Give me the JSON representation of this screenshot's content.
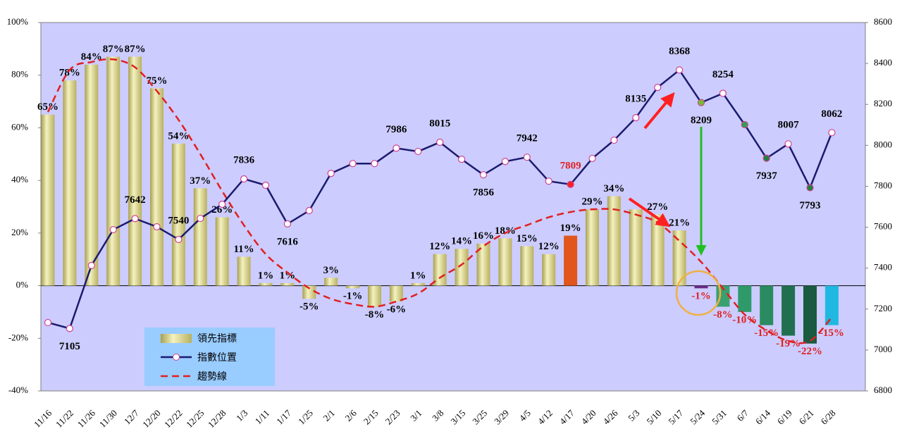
{
  "chart_data": {
    "type": "bar_line",
    "categories": [
      "11/16",
      "11/22",
      "11/26",
      "11/30",
      "12/7",
      "12/20",
      "12/22",
      "12/25",
      "12/28",
      "1/3",
      "1/11",
      "1/17",
      "1/25",
      "2/1",
      "2/6",
      "2/15",
      "2/23",
      "3/1",
      "3/8",
      "3/15",
      "3/25",
      "3/29",
      "4/5",
      "4/12",
      "4/17",
      "4/20",
      "4/26",
      "5/3",
      "5/10",
      "5/17",
      "5/24",
      "5/31",
      "6/7",
      "6/14",
      "6/19",
      "6/21",
      "6/28"
    ],
    "series": [
      {
        "name": "領先指標",
        "type": "bar",
        "axis": "y",
        "values": [
          65,
          78,
          84,
          87,
          87,
          75,
          54,
          37,
          26,
          11,
          1,
          1,
          -5,
          3,
          -1,
          -8,
          -6,
          1,
          12,
          14,
          16,
          18,
          15,
          12,
          19,
          29,
          34,
          29,
          27,
          21,
          -1,
          -8,
          -10,
          -15,
          -19,
          -22,
          -15
        ],
        "value_labels": [
          "65%",
          "78%",
          "84%",
          "87%",
          "87%",
          "75%",
          "54%",
          "37%",
          "26%",
          "11%",
          "1%",
          "1%",
          "-5%",
          "3%",
          "-1%",
          "-8%",
          "-6%",
          "1%",
          "12%",
          "14%",
          "16%",
          "18%",
          "15%",
          "12%",
          "19%",
          "29%",
          "34%",
          null,
          "27%",
          "21%",
          "-1%",
          "-8%",
          "-10%",
          "-15%",
          "-19%",
          "-22%",
          "-15%"
        ],
        "colors": [
          "#d8d488",
          "#d8d488",
          "#d8d488",
          "#d8d488",
          "#d8d488",
          "#d8d488",
          "#d8d488",
          "#d8d488",
          "#d8d488",
          "#d8d488",
          "#d8d488",
          "#d8d488",
          "#d8d488",
          "#d8d488",
          "#d8d488",
          "#d8d488",
          "#d8d488",
          "#d8d488",
          "#d8d488",
          "#d8d488",
          "#d8d488",
          "#d8d488",
          "#d8d488",
          "#d8d488",
          "#e0561c",
          "#d8d488",
          "#d8d488",
          "#d8d488",
          "#d8d488",
          "#d8d488",
          "#6a2a8a",
          "#3aa070",
          "#2e9a6a",
          "#2a8a60",
          "#207050",
          "#1a5a40",
          "#20b8e0"
        ]
      },
      {
        "name": "指數位置",
        "type": "line",
        "axis": "y2",
        "color": "#1a1a6e",
        "values": [
          7134,
          7105,
          7413,
          7588,
          7642,
          7602,
          7540,
          7643,
          7712,
          7836,
          7805,
          7616,
          7681,
          7863,
          7911,
          7911,
          7986,
          7970,
          8015,
          7932,
          7856,
          7921,
          7942,
          7825,
          7809,
          7936,
          8025,
          8135,
          8283,
          8368,
          8209,
          8254,
          8101,
          7937,
          8007,
          7793,
          8062
        ],
        "value_labels": [
          null,
          "7105",
          null,
          null,
          "7642",
          null,
          "7540",
          null,
          null,
          "7836",
          null,
          "7616",
          null,
          null,
          null,
          null,
          "7986",
          null,
          "8015",
          null,
          "7856",
          null,
          "7942",
          null,
          "7809",
          null,
          null,
          "8135",
          null,
          "8368",
          "8209",
          "8254",
          null,
          "7937",
          "8007",
          "7793",
          "8062"
        ],
        "marker_colors": [
          "#ffffff",
          "#ffffff",
          "#ffffff",
          "#ffffff",
          "#ffffff",
          "#ffffff",
          "#ffffff",
          "#ffffff",
          "#ffffff",
          "#ffffff",
          "#ffffff",
          "#ffffff",
          "#ffffff",
          "#ffffff",
          "#ffffff",
          "#ffffff",
          "#ffffff",
          "#ffffff",
          "#ffffff",
          "#ffffff",
          "#ffffff",
          "#ffffff",
          "#ffffff",
          "#ffffff",
          "#ff2020",
          "#ffffff",
          "#ffffff",
          "#ffffff",
          "#ffffff",
          "#ffffff",
          "#70c030",
          "#ffffff",
          "#30a050",
          "#208040",
          "#ffffff",
          "#208040",
          "#ffffff"
        ]
      },
      {
        "name": "趨勢線",
        "type": "dashed",
        "axis": "y",
        "color": "#e02020",
        "values": [
          66,
          82,
          85,
          86,
          83,
          74,
          63,
          50,
          36,
          23,
          12,
          5,
          -1,
          -5,
          -7,
          -8,
          -6,
          -3,
          3,
          8,
          15,
          20,
          23,
          26,
          28,
          29,
          29,
          27,
          24,
          17,
          9,
          -1,
          -11,
          -17,
          -21,
          -21,
          -12
        ]
      }
    ],
    "ylim": [
      -40,
      100
    ],
    "yticks": [
      {
        "value": -40,
        "label": "-40%"
      },
      {
        "value": -20,
        "label": "-20%"
      },
      {
        "value": 0,
        "label": "0%"
      },
      {
        "value": 20,
        "label": "20%"
      },
      {
        "value": 40,
        "label": "40%"
      },
      {
        "value": 60,
        "label": "60%"
      },
      {
        "value": 80,
        "label": "80%"
      },
      {
        "value": 100,
        "label": "100%"
      }
    ],
    "y2lim": [
      6800,
      8600
    ],
    "y2ticks": [
      6800,
      7000,
      7200,
      7400,
      7600,
      7800,
      8000,
      8200,
      8400,
      8600
    ],
    "background": "#ccccff"
  }
}
